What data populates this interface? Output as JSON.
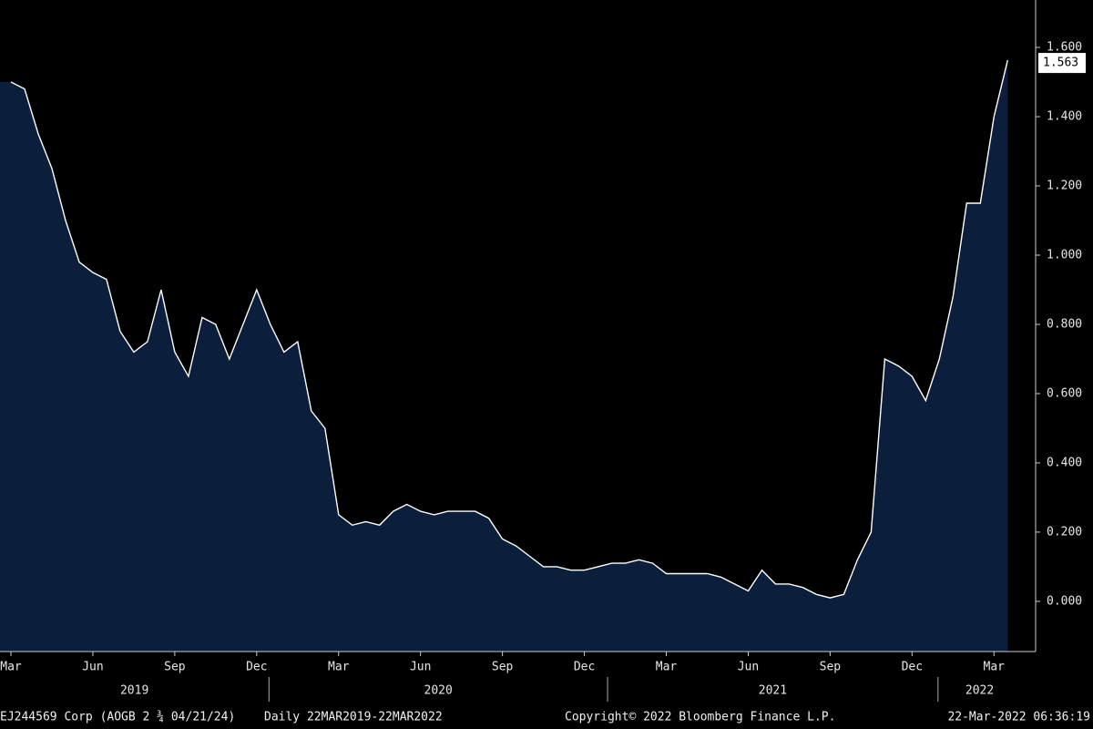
{
  "chart_data": {
    "type": "area",
    "categories": [
      "Mar",
      null,
      null,
      null,
      null,
      null,
      "Jun",
      null,
      null,
      null,
      null,
      null,
      "Sep",
      null,
      null,
      null,
      null,
      null,
      "Dec",
      null,
      null,
      null,
      null,
      null,
      "Mar",
      null,
      null,
      null,
      null,
      null,
      "Jun",
      null,
      null,
      null,
      null,
      null,
      "Sep",
      null,
      null,
      null,
      null,
      null,
      "Dec",
      null,
      null,
      null,
      null,
      null,
      "Mar",
      null,
      null,
      null,
      null,
      null,
      "Jun",
      null,
      null,
      null,
      null,
      null,
      "Sep",
      null,
      null,
      null,
      null,
      null,
      "Dec",
      null,
      null,
      null,
      null,
      null,
      "Mar",
      null
    ],
    "years": [
      "2019",
      "2020",
      "2021",
      "2022"
    ],
    "series": [
      {
        "color": "#ffffff",
        "fill": "#0b1f3d",
        "values": [
          1.5,
          1.48,
          1.35,
          1.25,
          1.1,
          0.98,
          0.95,
          0.93,
          0.78,
          0.72,
          0.75,
          0.9,
          0.72,
          0.65,
          0.82,
          0.8,
          0.7,
          0.8,
          0.9,
          0.8,
          0.72,
          0.75,
          0.55,
          0.5,
          0.25,
          0.22,
          0.23,
          0.22,
          0.26,
          0.28,
          0.26,
          0.25,
          0.26,
          0.26,
          0.26,
          0.24,
          0.18,
          0.16,
          0.13,
          0.1,
          0.1,
          0.09,
          0.09,
          0.1,
          0.11,
          0.11,
          0.12,
          0.11,
          0.08,
          0.08,
          0.08,
          0.08,
          0.07,
          0.05,
          0.03,
          0.09,
          0.05,
          0.05,
          0.04,
          0.02,
          0.01,
          0.02,
          0.12,
          0.2,
          0.7,
          0.68,
          0.65,
          0.58,
          0.7,
          0.88,
          1.15,
          1.15,
          1.4,
          1.563
        ],
        "value_labels": [
          null,
          null,
          null,
          null,
          null,
          null,
          null,
          null,
          null,
          null,
          null,
          null,
          null,
          null,
          null,
          null,
          null,
          null,
          null,
          null,
          null,
          null,
          null,
          null,
          null,
          null,
          null,
          null,
          null,
          null,
          null,
          null,
          null,
          null,
          null,
          null,
          null,
          null,
          null,
          null,
          null,
          null,
          null,
          null,
          null,
          null,
          null,
          null,
          null,
          null,
          null,
          null,
          null,
          null,
          null,
          null,
          null,
          null,
          null,
          null,
          null,
          null,
          null,
          null,
          null,
          null,
          null,
          null,
          null,
          null,
          null,
          null,
          null,
          "1.563"
        ]
      }
    ],
    "ylim": [
      -0.145,
      1.737
    ],
    "yticks": [
      {
        "value": 0,
        "label": "0.000"
      },
      {
        "value": 0.2,
        "label": "0.200"
      },
      {
        "value": 0.4,
        "label": "0.400"
      },
      {
        "value": 0.6,
        "label": "0.600"
      },
      {
        "value": 0.8,
        "label": "0.800"
      },
      {
        "value": 1,
        "label": "1.000"
      },
      {
        "value": 1.2,
        "label": "1.200"
      },
      {
        "value": 1.4,
        "label": "1.400"
      },
      {
        "value": 1.6,
        "label": "1.600"
      }
    ],
    "footer": {
      "security": "EJ244569 Corp (AOGB 2 ¾ 04/21/24)",
      "range": "Daily 22MAR2019-22MAR2022",
      "copyright": "Copyright© 2022 Bloomberg Finance L.P.",
      "timestamp": "22-Mar-2022 06:36:19"
    }
  }
}
